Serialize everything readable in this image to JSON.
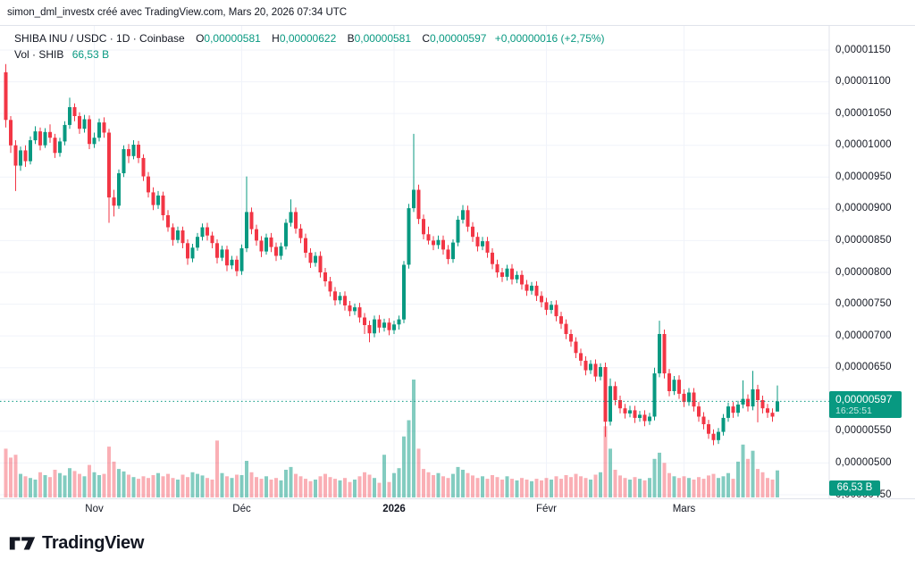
{
  "attribution": "simon_dml_investx créé avec TradingView.com, Mars 20, 2026 07:34 UTC",
  "legend": {
    "symbol_line": "SHIBA INU / USDC · 1D · Coinbase",
    "ohlc": [
      {
        "label": "O",
        "value": "0,00000581"
      },
      {
        "label": "H",
        "value": "0,00000622"
      },
      {
        "label": "B",
        "value": "0,00000581"
      },
      {
        "label": "C",
        "value": "0,00000597"
      }
    ],
    "change": "+0,00000016 (+2,75%)",
    "volume_label": "Vol · SHIB",
    "volume_value": "66,53 B"
  },
  "price_badge": {
    "price": "0,00000597",
    "countdown": "16:25:51"
  },
  "volume_badge": {
    "text": "66,53 B"
  },
  "footer": {
    "brand": "TradingView"
  },
  "colors": {
    "up": "#089981",
    "down": "#f23645",
    "volume_up": "rgba(8,153,129,0.5)",
    "volume_down": "rgba(242,54,69,0.4)",
    "grid": "#f0f3fa",
    "border": "#e0e3eb",
    "text": "#131722",
    "badge": "#089981",
    "background": "#ffffff"
  },
  "chart_data": {
    "type": "candlestick",
    "title": "SHIBA INU / USDC",
    "exchange": "Coinbase",
    "interval": "1D",
    "price_unit": "USDC x 1e-8",
    "volume_unit": "billions SHIB",
    "grid": true,
    "legend_position": "top-left",
    "ylim": [
      440,
      1170
    ],
    "y_ticks": [
      {
        "price": 1150,
        "text": "0,00001150"
      },
      {
        "price": 1100,
        "text": "0,00001100"
      },
      {
        "price": 1050,
        "text": "0,00001050"
      },
      {
        "price": 1000,
        "text": "0,00001000"
      },
      {
        "price": 950,
        "text": "0,00000950"
      },
      {
        "price": 900,
        "text": "0,00000900"
      },
      {
        "price": 850,
        "text": "0,00000850"
      },
      {
        "price": 800,
        "text": "0,00000800"
      },
      {
        "price": 750,
        "text": "0,00000750"
      },
      {
        "price": 700,
        "text": "0,00000700"
      },
      {
        "price": 650,
        "text": "0,00000650"
      },
      {
        "price": 600,
        "text": "0,00000600"
      },
      {
        "price": 550,
        "text": "0,00000550"
      },
      {
        "price": 500,
        "text": "0,00000500"
      },
      {
        "price": 450,
        "text": "0,00000450"
      }
    ],
    "x_ticks": [
      {
        "label": "Nov",
        "index": 18,
        "bold": false
      },
      {
        "label": "Déc",
        "index": 48,
        "bold": false
      },
      {
        "label": "2026",
        "index": 79,
        "bold": true
      },
      {
        "label": "Févr",
        "index": 110,
        "bold": false
      },
      {
        "label": "Mars",
        "index": 138,
        "bold": false
      }
    ],
    "start_date": "2025-10-14",
    "end_date": "2026-03-20",
    "current": {
      "open": 581,
      "high": 622,
      "low": 581,
      "close": 597,
      "change": 16,
      "change_pct": 2.75,
      "volume": 66.53
    },
    "candles": [
      [
        1115,
        1128,
        1028,
        1040
      ],
      [
        1040,
        1046,
        988,
        1000
      ],
      [
        1000,
        1008,
        928,
        968
      ],
      [
        968,
        998,
        960,
        992
      ],
      [
        992,
        1000,
        966,
        975
      ],
      [
        975,
        1014,
        970,
        1008
      ],
      [
        1008,
        1030,
        1002,
        1022
      ],
      [
        1022,
        1028,
        992,
        1000
      ],
      [
        1000,
        1027,
        996,
        1021
      ],
      [
        1021,
        1033,
        1004,
        1012
      ],
      [
        1012,
        1018,
        980,
        988
      ],
      [
        988,
        1012,
        982,
        1006
      ],
      [
        1006,
        1038,
        1000,
        1032
      ],
      [
        1032,
        1075,
        1026,
        1060
      ],
      [
        1060,
        1066,
        1038,
        1046
      ],
      [
        1046,
        1052,
        1018,
        1026
      ],
      [
        1026,
        1048,
        1020,
        1041
      ],
      [
        1041,
        1047,
        994,
        1002
      ],
      [
        1002,
        1020,
        996,
        1012
      ],
      [
        1012,
        1042,
        1006,
        1036
      ],
      [
        1036,
        1044,
        1012,
        1020
      ],
      [
        1020,
        1026,
        878,
        918
      ],
      [
        918,
        930,
        888,
        905
      ],
      [
        905,
        962,
        900,
        956
      ],
      [
        956,
        1000,
        950,
        994
      ],
      [
        994,
        1002,
        972,
        983
      ],
      [
        983,
        1008,
        978,
        1001
      ],
      [
        1001,
        1007,
        972,
        980
      ],
      [
        980,
        986,
        944,
        951
      ],
      [
        951,
        958,
        918,
        926
      ],
      [
        926,
        934,
        898,
        906
      ],
      [
        906,
        928,
        900,
        921
      ],
      [
        921,
        927,
        882,
        890
      ],
      [
        890,
        898,
        864,
        871
      ],
      [
        871,
        877,
        842,
        851
      ],
      [
        851,
        872,
        846,
        866
      ],
      [
        866,
        872,
        838,
        846
      ],
      [
        846,
        852,
        812,
        822
      ],
      [
        822,
        845,
        816,
        839
      ],
      [
        839,
        862,
        834,
        856
      ],
      [
        856,
        877,
        850,
        871
      ],
      [
        871,
        878,
        850,
        858
      ],
      [
        858,
        864,
        838,
        846
      ],
      [
        846,
        852,
        814,
        823
      ],
      [
        823,
        842,
        818,
        836
      ],
      [
        836,
        842,
        802,
        811
      ],
      [
        811,
        826,
        805,
        820
      ],
      [
        820,
        826,
        794,
        802
      ],
      [
        802,
        844,
        796,
        838
      ],
      [
        838,
        951,
        832,
        895
      ],
      [
        895,
        902,
        860,
        868
      ],
      [
        868,
        875,
        842,
        850
      ],
      [
        850,
        857,
        824,
        833
      ],
      [
        833,
        861,
        828,
        855
      ],
      [
        855,
        862,
        832,
        840
      ],
      [
        840,
        847,
        818,
        826
      ],
      [
        826,
        847,
        820,
        841
      ],
      [
        841,
        884,
        836,
        878
      ],
      [
        878,
        915,
        872,
        895
      ],
      [
        895,
        902,
        861,
        869
      ],
      [
        869,
        876,
        846,
        854
      ],
      [
        854,
        861,
        823,
        831
      ],
      [
        831,
        838,
        807,
        815
      ],
      [
        815,
        832,
        809,
        826
      ],
      [
        826,
        833,
        792,
        800
      ],
      [
        800,
        807,
        778,
        786
      ],
      [
        786,
        793,
        762,
        770
      ],
      [
        770,
        777,
        748,
        756
      ],
      [
        756,
        769,
        750,
        763
      ],
      [
        763,
        770,
        740,
        748
      ],
      [
        748,
        755,
        731,
        739
      ],
      [
        739,
        751,
        733,
        745
      ],
      [
        745,
        752,
        721,
        729
      ],
      [
        729,
        736,
        703,
        717
      ],
      [
        717,
        724,
        690,
        704
      ],
      [
        704,
        732,
        698,
        726
      ],
      [
        726,
        733,
        705,
        713
      ],
      [
        713,
        727,
        707,
        721
      ],
      [
        721,
        728,
        701,
        709
      ],
      [
        709,
        724,
        703,
        718
      ],
      [
        718,
        732,
        710,
        726
      ],
      [
        726,
        818,
        720,
        812
      ],
      [
        812,
        908,
        806,
        901
      ],
      [
        901,
        1018,
        895,
        930
      ],
      [
        930,
        938,
        876,
        884
      ],
      [
        884,
        891,
        852,
        860
      ],
      [
        860,
        872,
        844,
        850
      ],
      [
        850,
        857,
        835,
        843
      ],
      [
        843,
        858,
        837,
        851
      ],
      [
        851,
        858,
        828,
        836
      ],
      [
        836,
        843,
        813,
        821
      ],
      [
        821,
        852,
        815,
        847
      ],
      [
        847,
        889,
        841,
        883
      ],
      [
        883,
        906,
        877,
        898
      ],
      [
        898,
        905,
        864,
        872
      ],
      [
        872,
        879,
        848,
        856
      ],
      [
        856,
        863,
        833,
        841
      ],
      [
        841,
        856,
        835,
        849
      ],
      [
        849,
        856,
        823,
        831
      ],
      [
        831,
        838,
        805,
        813
      ],
      [
        813,
        820,
        792,
        800
      ],
      [
        800,
        807,
        785,
        793
      ],
      [
        793,
        812,
        787,
        806
      ],
      [
        806,
        813,
        781,
        789
      ],
      [
        789,
        802,
        783,
        796
      ],
      [
        796,
        803,
        773,
        781
      ],
      [
        781,
        788,
        763,
        771
      ],
      [
        771,
        785,
        765,
        779
      ],
      [
        779,
        786,
        755,
        763
      ],
      [
        763,
        770,
        745,
        753
      ],
      [
        753,
        760,
        733,
        741
      ],
      [
        741,
        755,
        735,
        749
      ],
      [
        749,
        756,
        723,
        731
      ],
      [
        731,
        738,
        711,
        719
      ],
      [
        719,
        726,
        695,
        703
      ],
      [
        703,
        710,
        683,
        691
      ],
      [
        691,
        698,
        665,
        673
      ],
      [
        673,
        680,
        653,
        661
      ],
      [
        661,
        668,
        638,
        646
      ],
      [
        646,
        662,
        640,
        656
      ],
      [
        656,
        663,
        628,
        636
      ],
      [
        636,
        657,
        630,
        651
      ],
      [
        651,
        658,
        541,
        565
      ],
      [
        565,
        633,
        559,
        621
      ],
      [
        621,
        628,
        591,
        599
      ],
      [
        599,
        606,
        578,
        586
      ],
      [
        586,
        593,
        570,
        578
      ],
      [
        578,
        590,
        572,
        583
      ],
      [
        583,
        590,
        563,
        571
      ],
      [
        571,
        582,
        565,
        576
      ],
      [
        576,
        583,
        558,
        566
      ],
      [
        566,
        579,
        560,
        573
      ],
      [
        573,
        650,
        567,
        641
      ],
      [
        641,
        724,
        635,
        703
      ],
      [
        703,
        710,
        633,
        641
      ],
      [
        641,
        648,
        605,
        613
      ],
      [
        613,
        637,
        607,
        631
      ],
      [
        631,
        638,
        601,
        609
      ],
      [
        609,
        616,
        588,
        596
      ],
      [
        596,
        618,
        590,
        611
      ],
      [
        611,
        618,
        581,
        589
      ],
      [
        589,
        596,
        565,
        573
      ],
      [
        573,
        580,
        553,
        561
      ],
      [
        561,
        568,
        538,
        546
      ],
      [
        546,
        553,
        528,
        536
      ],
      [
        536,
        555,
        530,
        549
      ],
      [
        549,
        577,
        543,
        571
      ],
      [
        571,
        595,
        565,
        589
      ],
      [
        589,
        596,
        571,
        579
      ],
      [
        579,
        598,
        573,
        592
      ],
      [
        592,
        630,
        586,
        601
      ],
      [
        601,
        608,
        581,
        589
      ],
      [
        589,
        645,
        583,
        616
      ],
      [
        616,
        623,
        564,
        599
      ],
      [
        599,
        606,
        578,
        586
      ],
      [
        586,
        593,
        571,
        579
      ],
      [
        579,
        586,
        565,
        573
      ],
      [
        581,
        622,
        581,
        597
      ]
    ],
    "volumes": [
      120,
      98,
      105,
      58,
      52,
      48,
      44,
      62,
      55,
      50,
      68,
      60,
      54,
      72,
      65,
      58,
      52,
      80,
      62,
      55,
      58,
      125,
      88,
      70,
      64,
      56,
      50,
      46,
      52,
      48,
      55,
      60,
      52,
      58,
      48,
      44,
      56,
      50,
      62,
      58,
      54,
      48,
      44,
      140,
      60,
      52,
      48,
      56,
      55,
      90,
      62,
      50,
      46,
      52,
      44,
      48,
      42,
      68,
      75,
      58,
      52,
      46,
      40,
      44,
      52,
      58,
      50,
      46,
      42,
      48,
      38,
      44,
      52,
      62,
      56,
      48,
      36,
      105,
      38,
      60,
      72,
      150,
      190,
      290,
      120,
      70,
      62,
      55,
      60,
      52,
      48,
      58,
      75,
      68,
      60,
      54,
      48,
      52,
      46,
      55,
      50,
      44,
      52,
      46,
      42,
      48,
      44,
      40,
      46,
      42,
      48,
      44,
      52,
      46,
      55,
      50,
      58,
      52,
      48,
      44,
      56,
      62,
      175,
      120,
      68,
      54,
      48,
      44,
      50,
      46,
      42,
      48,
      95,
      110,
      85,
      60,
      52,
      48,
      52,
      48,
      44,
      50,
      46,
      54,
      58,
      48,
      52,
      60,
      46,
      88,
      130,
      95,
      115,
      70,
      62,
      48,
      44,
      66.53
    ]
  }
}
